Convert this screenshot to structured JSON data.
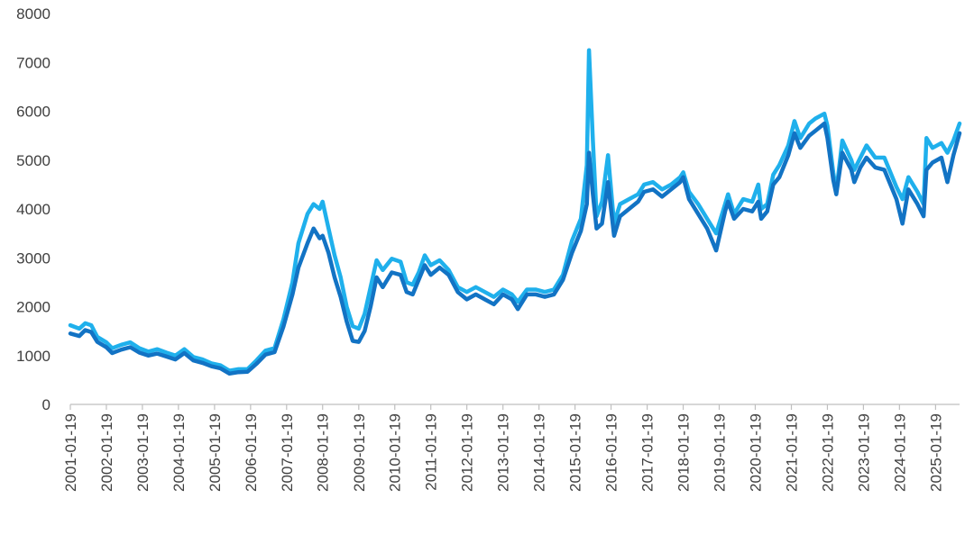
{
  "chart_data": {
    "type": "line",
    "title": "",
    "xlabel": "",
    "ylabel": "",
    "ylim": [
      0,
      8000
    ],
    "yticks": [
      0,
      1000,
      2000,
      3000,
      4000,
      5000,
      6000,
      7000,
      8000
    ],
    "xlim": [
      "2001-01-19",
      "2025-09-19"
    ],
    "xticks": [
      "2001-01-19",
      "2002-01-19",
      "2003-01-19",
      "2004-01-19",
      "2005-01-19",
      "2006-01-19",
      "2007-01-19",
      "2008-01-19",
      "2009-01-19",
      "2010-01-19",
      "2011-01-19",
      "2012-01-19",
      "2013-01-19",
      "2014-01-19",
      "2015-01-19",
      "2016-01-19",
      "2017-01-19",
      "2018-01-19",
      "2019-01-19",
      "2020-01-19",
      "2021-01-19",
      "2022-01-19",
      "2023-01-19",
      "2024-01-19",
      "2025-01-19"
    ],
    "grid": false,
    "legend": "none",
    "series": [
      {
        "color": "#1fb0ec",
        "points": [
          [
            "2001-01-19",
            1620
          ],
          [
            "2001-04-19",
            1550
          ],
          [
            "2001-06-19",
            1660
          ],
          [
            "2001-08-19",
            1620
          ],
          [
            "2001-10-19",
            1380
          ],
          [
            "2002-01-19",
            1270
          ],
          [
            "2002-03-19",
            1150
          ],
          [
            "2002-06-19",
            1220
          ],
          [
            "2002-09-19",
            1270
          ],
          [
            "2002-12-19",
            1150
          ],
          [
            "2003-03-19",
            1080
          ],
          [
            "2003-06-19",
            1130
          ],
          [
            "2003-09-19",
            1060
          ],
          [
            "2003-12-19",
            1000
          ],
          [
            "2004-03-19",
            1130
          ],
          [
            "2004-06-19",
            970
          ],
          [
            "2004-09-19",
            920
          ],
          [
            "2004-12-19",
            840
          ],
          [
            "2005-03-19",
            800
          ],
          [
            "2005-06-19",
            690
          ],
          [
            "2005-09-19",
            720
          ],
          [
            "2005-12-19",
            720
          ],
          [
            "2006-03-19",
            900
          ],
          [
            "2006-06-19",
            1100
          ],
          [
            "2006-09-19",
            1150
          ],
          [
            "2006-12-19",
            1750
          ],
          [
            "2007-03-19",
            2500
          ],
          [
            "2007-05-19",
            3300
          ],
          [
            "2007-08-19",
            3900
          ],
          [
            "2007-10-19",
            4100
          ],
          [
            "2007-12-19",
            4000
          ],
          [
            "2008-01-19",
            4150
          ],
          [
            "2008-03-19",
            3600
          ],
          [
            "2008-05-19",
            3050
          ],
          [
            "2008-07-19",
            2600
          ],
          [
            "2008-09-19",
            2000
          ],
          [
            "2008-11-19",
            1600
          ],
          [
            "2009-01-19",
            1550
          ],
          [
            "2009-03-19",
            1850
          ],
          [
            "2009-05-19",
            2400
          ],
          [
            "2009-07-19",
            2950
          ],
          [
            "2009-09-19",
            2750
          ],
          [
            "2009-12-19",
            2980
          ],
          [
            "2010-03-19",
            2920
          ],
          [
            "2010-05-19",
            2500
          ],
          [
            "2010-07-19",
            2450
          ],
          [
            "2010-09-19",
            2700
          ],
          [
            "2010-11-19",
            3050
          ],
          [
            "2011-01-19",
            2850
          ],
          [
            "2011-04-19",
            2950
          ],
          [
            "2011-07-19",
            2750
          ],
          [
            "2011-10-19",
            2400
          ],
          [
            "2012-01-19",
            2300
          ],
          [
            "2012-04-19",
            2400
          ],
          [
            "2012-07-19",
            2300
          ],
          [
            "2012-10-19",
            2200
          ],
          [
            "2013-01-19",
            2350
          ],
          [
            "2013-04-19",
            2250
          ],
          [
            "2013-06-19",
            2100
          ],
          [
            "2013-09-19",
            2350
          ],
          [
            "2013-12-19",
            2350
          ],
          [
            "2014-03-19",
            2300
          ],
          [
            "2014-06-19",
            2350
          ],
          [
            "2014-09-19",
            2650
          ],
          [
            "2014-12-19",
            3350
          ],
          [
            "2015-03-19",
            3800
          ],
          [
            "2015-05-19",
            4900
          ],
          [
            "2015-06-10",
            7250
          ],
          [
            "2015-07-19",
            5400
          ],
          [
            "2015-08-25",
            3850
          ],
          [
            "2015-10-19",
            4150
          ],
          [
            "2015-12-19",
            5100
          ],
          [
            "2016-02-19",
            3700
          ],
          [
            "2016-04-19",
            4100
          ],
          [
            "2016-07-19",
            4200
          ],
          [
            "2016-10-19",
            4300
          ],
          [
            "2016-12-19",
            4500
          ],
          [
            "2017-03-19",
            4550
          ],
          [
            "2017-06-19",
            4400
          ],
          [
            "2017-09-19",
            4500
          ],
          [
            "2017-12-19",
            4650
          ],
          [
            "2018-01-19",
            4750
          ],
          [
            "2018-03-19",
            4350
          ],
          [
            "2018-06-19",
            4100
          ],
          [
            "2018-09-19",
            3800
          ],
          [
            "2018-12-19",
            3500
          ],
          [
            "2019-03-19",
            4100
          ],
          [
            "2019-04-19",
            4300
          ],
          [
            "2019-06-19",
            3900
          ],
          [
            "2019-09-19",
            4200
          ],
          [
            "2019-12-19",
            4150
          ],
          [
            "2020-02-19",
            4500
          ],
          [
            "2020-03-19",
            4000
          ],
          [
            "2020-05-19",
            4100
          ],
          [
            "2020-07-19",
            4700
          ],
          [
            "2020-09-19",
            4900
          ],
          [
            "2020-12-19",
            5300
          ],
          [
            "2021-02-19",
            5800
          ],
          [
            "2021-04-19",
            5450
          ],
          [
            "2021-07-19",
            5750
          ],
          [
            "2021-09-19",
            5850
          ],
          [
            "2021-12-19",
            5950
          ],
          [
            "2022-01-19",
            5700
          ],
          [
            "2022-03-19",
            4750
          ],
          [
            "2022-04-19",
            4350
          ],
          [
            "2022-06-19",
            5400
          ],
          [
            "2022-09-19",
            5000
          ],
          [
            "2022-10-19",
            4800
          ],
          [
            "2022-12-19",
            5050
          ],
          [
            "2023-02-19",
            5300
          ],
          [
            "2023-05-19",
            5050
          ],
          [
            "2023-08-19",
            5050
          ],
          [
            "2023-10-19",
            4750
          ],
          [
            "2023-12-19",
            4450
          ],
          [
            "2024-02-19",
            4200
          ],
          [
            "2024-04-19",
            4650
          ],
          [
            "2024-07-19",
            4350
          ],
          [
            "2024-09-19",
            4100
          ],
          [
            "2024-10-19",
            5450
          ],
          [
            "2024-12-19",
            5250
          ],
          [
            "2025-03-19",
            5350
          ],
          [
            "2025-05-19",
            5150
          ],
          [
            "2025-07-19",
            5400
          ],
          [
            "2025-09-19",
            5750
          ]
        ]
      },
      {
        "color": "#1273c4",
        "points": [
          [
            "2001-01-19",
            1450
          ],
          [
            "2001-04-19",
            1400
          ],
          [
            "2001-06-19",
            1520
          ],
          [
            "2001-08-19",
            1480
          ],
          [
            "2001-10-19",
            1280
          ],
          [
            "2002-01-19",
            1170
          ],
          [
            "2002-03-19",
            1050
          ],
          [
            "2002-06-19",
            1120
          ],
          [
            "2002-09-19",
            1170
          ],
          [
            "2002-12-19",
            1060
          ],
          [
            "2003-03-19",
            1000
          ],
          [
            "2003-06-19",
            1040
          ],
          [
            "2003-09-19",
            980
          ],
          [
            "2003-12-19",
            920
          ],
          [
            "2004-03-19",
            1050
          ],
          [
            "2004-06-19",
            900
          ],
          [
            "2004-09-19",
            850
          ],
          [
            "2004-12-19",
            780
          ],
          [
            "2005-03-19",
            740
          ],
          [
            "2005-06-19",
            630
          ],
          [
            "2005-09-19",
            660
          ],
          [
            "2005-12-19",
            670
          ],
          [
            "2006-03-19",
            830
          ],
          [
            "2006-06-19",
            1020
          ],
          [
            "2006-09-19",
            1070
          ],
          [
            "2006-12-19",
            1600
          ],
          [
            "2007-03-19",
            2250
          ],
          [
            "2007-05-19",
            2800
          ],
          [
            "2007-08-19",
            3300
          ],
          [
            "2007-10-19",
            3600
          ],
          [
            "2007-12-19",
            3400
          ],
          [
            "2008-01-19",
            3450
          ],
          [
            "2008-03-19",
            3100
          ],
          [
            "2008-05-19",
            2600
          ],
          [
            "2008-07-19",
            2200
          ],
          [
            "2008-09-19",
            1700
          ],
          [
            "2008-11-19",
            1300
          ],
          [
            "2009-01-19",
            1280
          ],
          [
            "2009-03-19",
            1500
          ],
          [
            "2009-05-19",
            2000
          ],
          [
            "2009-07-19",
            2600
          ],
          [
            "2009-09-19",
            2400
          ],
          [
            "2009-12-19",
            2700
          ],
          [
            "2010-03-19",
            2650
          ],
          [
            "2010-05-19",
            2300
          ],
          [
            "2010-07-19",
            2250
          ],
          [
            "2010-09-19",
            2550
          ],
          [
            "2010-11-19",
            2850
          ],
          [
            "2011-01-19",
            2650
          ],
          [
            "2011-04-19",
            2800
          ],
          [
            "2011-07-19",
            2650
          ],
          [
            "2011-10-19",
            2300
          ],
          [
            "2012-01-19",
            2150
          ],
          [
            "2012-04-19",
            2250
          ],
          [
            "2012-07-19",
            2150
          ],
          [
            "2012-10-19",
            2050
          ],
          [
            "2013-01-19",
            2250
          ],
          [
            "2013-04-19",
            2150
          ],
          [
            "2013-06-19",
            1950
          ],
          [
            "2013-09-19",
            2250
          ],
          [
            "2013-12-19",
            2250
          ],
          [
            "2014-03-19",
            2200
          ],
          [
            "2014-06-19",
            2250
          ],
          [
            "2014-09-19",
            2550
          ],
          [
            "2014-12-19",
            3100
          ],
          [
            "2015-03-19",
            3550
          ],
          [
            "2015-05-19",
            4100
          ],
          [
            "2015-06-10",
            5150
          ],
          [
            "2015-07-19",
            4300
          ],
          [
            "2015-08-25",
            3600
          ],
          [
            "2015-10-19",
            3700
          ],
          [
            "2015-12-19",
            4550
          ],
          [
            "2016-02-19",
            3450
          ],
          [
            "2016-04-19",
            3850
          ],
          [
            "2016-07-19",
            4000
          ],
          [
            "2016-10-19",
            4150
          ],
          [
            "2016-12-19",
            4350
          ],
          [
            "2017-03-19",
            4400
          ],
          [
            "2017-06-19",
            4250
          ],
          [
            "2017-09-19",
            4400
          ],
          [
            "2017-12-19",
            4550
          ],
          [
            "2018-01-19",
            4650
          ],
          [
            "2018-03-19",
            4200
          ],
          [
            "2018-06-19",
            3900
          ],
          [
            "2018-09-19",
            3600
          ],
          [
            "2018-12-19",
            3150
          ],
          [
            "2019-03-19",
            3950
          ],
          [
            "2019-04-19",
            4150
          ],
          [
            "2019-06-19",
            3800
          ],
          [
            "2019-09-19",
            4000
          ],
          [
            "2019-12-19",
            3950
          ],
          [
            "2020-02-19",
            4150
          ],
          [
            "2020-03-19",
            3800
          ],
          [
            "2020-05-19",
            3950
          ],
          [
            "2020-07-19",
            4500
          ],
          [
            "2020-09-19",
            4650
          ],
          [
            "2020-12-19",
            5100
          ],
          [
            "2021-02-19",
            5550
          ],
          [
            "2021-04-19",
            5250
          ],
          [
            "2021-07-19",
            5500
          ],
          [
            "2021-09-19",
            5600
          ],
          [
            "2021-12-19",
            5750
          ],
          [
            "2022-01-19",
            5450
          ],
          [
            "2022-03-19",
            4600
          ],
          [
            "2022-04-19",
            4300
          ],
          [
            "2022-06-19",
            5150
          ],
          [
            "2022-09-19",
            4800
          ],
          [
            "2022-10-19",
            4550
          ],
          [
            "2022-12-19",
            4850
          ],
          [
            "2023-02-19",
            5050
          ],
          [
            "2023-05-19",
            4850
          ],
          [
            "2023-08-19",
            4800
          ],
          [
            "2023-10-19",
            4500
          ],
          [
            "2023-12-19",
            4200
          ],
          [
            "2024-02-19",
            3700
          ],
          [
            "2024-04-19",
            4400
          ],
          [
            "2024-07-19",
            4100
          ],
          [
            "2024-09-19",
            3850
          ],
          [
            "2024-10-19",
            4800
          ],
          [
            "2024-12-19",
            4950
          ],
          [
            "2025-03-19",
            5050
          ],
          [
            "2025-05-19",
            4550
          ],
          [
            "2025-07-19",
            5100
          ],
          [
            "2025-09-19",
            5550
          ]
        ]
      }
    ]
  }
}
